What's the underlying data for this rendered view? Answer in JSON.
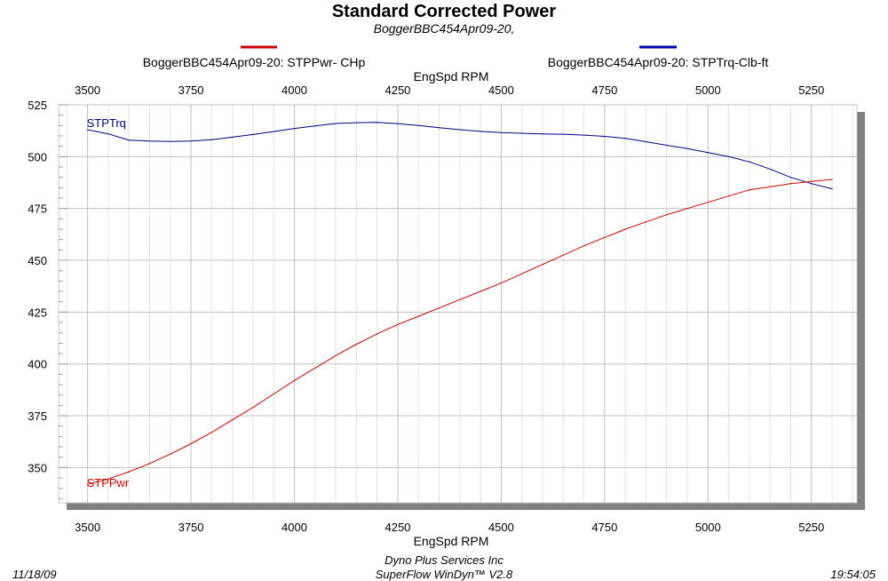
{
  "chart_data": {
    "type": "line",
    "title": "Standard Corrected Power",
    "subtitle": "BoggerBBC454Apr09-20,",
    "xlabel": "EngSpd  RPM",
    "x_top_label": "EngSpd  RPM",
    "xlim": [
      3430,
      5360
    ],
    "ylim": [
      333,
      525
    ],
    "x_ticks": [
      3500,
      3750,
      4000,
      4250,
      4500,
      4750,
      5000,
      5250
    ],
    "y_ticks": [
      350,
      375,
      400,
      425,
      450,
      475,
      500,
      525
    ],
    "x_minor_step": 50,
    "y_minor_step": 5,
    "grid": true,
    "legend": [
      {
        "text": "BoggerBBC454Apr09-20: STPPwr- CHp",
        "color": "#cc0000"
      },
      {
        "text": "BoggerBBC454Apr09-20: STPTrq-Clb-ft",
        "color": "#0000aa"
      }
    ],
    "series": [
      {
        "name": "STPTrq",
        "color": "#000080",
        "x": [
          3500,
          3550,
          3600,
          3650,
          3700,
          3750,
          3800,
          3850,
          3900,
          3950,
          4000,
          4050,
          4100,
          4150,
          4200,
          4250,
          4300,
          4350,
          4400,
          4450,
          4500,
          4550,
          4600,
          4650,
          4700,
          4750,
          4800,
          4850,
          4900,
          4950,
          5000,
          5050,
          5100,
          5150,
          5200,
          5250,
          5300
        ],
        "y": [
          513,
          511,
          508,
          507.5,
          507.3,
          507.5,
          508.2,
          509.4,
          510.7,
          512.1,
          513.6,
          514.8,
          516,
          516.4,
          516.5,
          515.9,
          515,
          514,
          513,
          512.2,
          511.6,
          511.3,
          511,
          510.8,
          510.4,
          509.8,
          508.8,
          507.2,
          505.5,
          503.9,
          502,
          500,
          497.5,
          494,
          490,
          487,
          484.5
        ]
      },
      {
        "name": "STPPwr",
        "color": "#cc0000",
        "x": [
          3500,
          3550,
          3600,
          3650,
          3700,
          3750,
          3800,
          3850,
          3900,
          3950,
          4000,
          4050,
          4100,
          4150,
          4200,
          4250,
          4300,
          4350,
          4400,
          4450,
          4500,
          4550,
          4600,
          4650,
          4700,
          4750,
          4800,
          4850,
          4900,
          4950,
          5000,
          5050,
          5100,
          5150,
          5200,
          5250,
          5300
        ],
        "y": [
          342,
          344.5,
          348,
          352,
          356.5,
          361.5,
          367,
          373,
          379,
          385.5,
          392,
          398,
          404,
          409.5,
          414.5,
          419,
          423,
          427,
          431,
          435,
          439,
          443.5,
          448,
          452.5,
          457,
          461,
          465,
          468.5,
          472,
          475,
          478,
          481,
          484,
          485.5,
          487,
          488,
          489
        ]
      }
    ],
    "series_labels": [
      "STPTrq",
      "STPPwr"
    ]
  },
  "footer": {
    "date": "11/18/09",
    "time": "19:54:05",
    "company": "Dyno Plus Services Inc",
    "software": "SuperFlow WinDyn™ V2.8"
  }
}
